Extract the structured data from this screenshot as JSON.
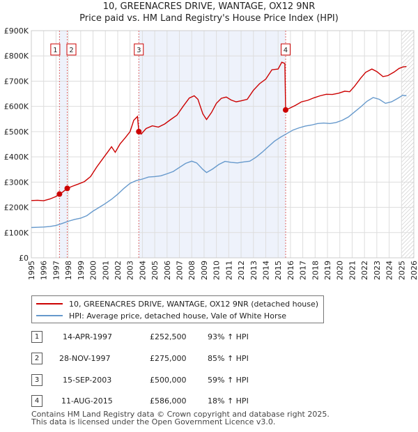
{
  "title": "10, GREENACRES DRIVE, WANTAGE, OX12 9NR",
  "subtitle": "Price paid vs. HM Land Registry's House Price Index (HPI)",
  "legend": {
    "property": "10, GREENACRES DRIVE, WANTAGE, OX12 9NR (detached house)",
    "hpi": "HPI: Average price, detached house, Vale of White Horse"
  },
  "colors": {
    "property": "#cc0000",
    "hpi": "#6699cc",
    "shade": "#eef2fb"
  },
  "sales": [
    {
      "num": "1",
      "date": "14-APR-1997",
      "price": "£252,500",
      "change": "93% ↑ HPI"
    },
    {
      "num": "2",
      "date": "28-NOV-1997",
      "price": "£275,000",
      "change": "85% ↑ HPI"
    },
    {
      "num": "3",
      "date": "15-SEP-2003",
      "price": "£500,000",
      "change": "59% ↑ HPI"
    },
    {
      "num": "4",
      "date": "11-AUG-2015",
      "price": "£586,000",
      "change": "18% ↑ HPI"
    }
  ],
  "footer": {
    "line1": "Contains HM Land Registry data © Crown copyright and database right 2025.",
    "line2": "This data is licensed under the Open Government Licence v3.0."
  },
  "chart_data": {
    "type": "line",
    "xlim": [
      1995,
      2026
    ],
    "ylim": [
      0,
      900000
    ],
    "yticks": [
      0,
      100000,
      200000,
      300000,
      400000,
      500000,
      600000,
      700000,
      800000,
      900000
    ],
    "ytick_labels": [
      "£0",
      "£100K",
      "£200K",
      "£300K",
      "£400K",
      "£500K",
      "£600K",
      "£700K",
      "£800K",
      "£900K"
    ],
    "xticks": [
      "1995",
      "1996",
      "1997",
      "1998",
      "1999",
      "2000",
      "2001",
      "2002",
      "2003",
      "2004",
      "2005",
      "2006",
      "2007",
      "2008",
      "2009",
      "2010",
      "2011",
      "2012",
      "2013",
      "2014",
      "2015",
      "2016",
      "2017",
      "2018",
      "2019",
      "2020",
      "2021",
      "2022",
      "2023",
      "2024",
      "2025",
      "2026"
    ],
    "sale_markers": [
      {
        "label": "1",
        "year": 1997.28,
        "value": 252500
      },
      {
        "label": "2",
        "year": 1997.91,
        "value": 275000
      },
      {
        "label": "3",
        "year": 2003.71,
        "value": 500000
      },
      {
        "label": "4",
        "year": 2015.61,
        "value": 586000
      }
    ],
    "forecast_start": 2025.0,
    "series": [
      {
        "name": "10, GREENACRES DRIVE, WANTAGE, OX12 9NR (detached house)",
        "points": [
          [
            1995.0,
            227000
          ],
          [
            1995.5,
            228000
          ],
          [
            1996.0,
            226000
          ],
          [
            1996.5,
            233000
          ],
          [
            1997.0,
            243000
          ],
          [
            1997.28,
            252500
          ],
          [
            1997.5,
            259000
          ],
          [
            1997.91,
            275000
          ],
          [
            1998.3,
            283000
          ],
          [
            1998.8,
            292000
          ],
          [
            1999.3,
            302000
          ],
          [
            1999.8,
            322000
          ],
          [
            2000.3,
            360000
          ],
          [
            2000.8,
            393000
          ],
          [
            2001.2,
            420000
          ],
          [
            2001.5,
            440000
          ],
          [
            2001.8,
            418000
          ],
          [
            2002.2,
            452000
          ],
          [
            2002.6,
            475000
          ],
          [
            2003.0,
            500000
          ],
          [
            2003.3,
            545000
          ],
          [
            2003.6,
            560000
          ],
          [
            2003.71,
            500000
          ],
          [
            2003.9,
            490000
          ],
          [
            2004.3,
            512000
          ],
          [
            2004.8,
            523000
          ],
          [
            2005.3,
            518000
          ],
          [
            2005.8,
            530000
          ],
          [
            2006.3,
            548000
          ],
          [
            2006.8,
            565000
          ],
          [
            2007.3,
            600000
          ],
          [
            2007.8,
            633000
          ],
          [
            2008.2,
            642000
          ],
          [
            2008.5,
            628000
          ],
          [
            2008.9,
            570000
          ],
          [
            2009.2,
            548000
          ],
          [
            2009.6,
            576000
          ],
          [
            2010.0,
            612000
          ],
          [
            2010.4,
            632000
          ],
          [
            2010.8,
            637000
          ],
          [
            2011.2,
            625000
          ],
          [
            2011.6,
            618000
          ],
          [
            2012.0,
            622000
          ],
          [
            2012.5,
            628000
          ],
          [
            2013.0,
            664000
          ],
          [
            2013.5,
            690000
          ],
          [
            2014.0,
            708000
          ],
          [
            2014.5,
            745000
          ],
          [
            2015.0,
            748000
          ],
          [
            2015.3,
            775000
          ],
          [
            2015.55,
            770000
          ],
          [
            2015.61,
            586000
          ],
          [
            2015.9,
            592000
          ],
          [
            2016.4,
            604000
          ],
          [
            2016.9,
            618000
          ],
          [
            2017.4,
            624000
          ],
          [
            2017.9,
            634000
          ],
          [
            2018.4,
            642000
          ],
          [
            2018.9,
            648000
          ],
          [
            2019.4,
            647000
          ],
          [
            2019.9,
            652000
          ],
          [
            2020.4,
            660000
          ],
          [
            2020.8,
            658000
          ],
          [
            2021.2,
            680000
          ],
          [
            2021.7,
            712000
          ],
          [
            2022.1,
            735000
          ],
          [
            2022.6,
            748000
          ],
          [
            2023.0,
            738000
          ],
          [
            2023.5,
            718000
          ],
          [
            2023.9,
            722000
          ],
          [
            2024.4,
            736000
          ],
          [
            2024.8,
            750000
          ],
          [
            2025.1,
            756000
          ],
          [
            2025.4,
            758000
          ]
        ]
      },
      {
        "name": "HPI: Average price, detached house, Vale of White Horse",
        "points": [
          [
            1995.0,
            120000
          ],
          [
            1995.5,
            121000
          ],
          [
            1996.0,
            122000
          ],
          [
            1996.5,
            124000
          ],
          [
            1997.0,
            128000
          ],
          [
            1997.5,
            136000
          ],
          [
            1998.0,
            145000
          ],
          [
            1998.5,
            152000
          ],
          [
            1999.0,
            157000
          ],
          [
            1999.5,
            167000
          ],
          [
            2000.0,
            185000
          ],
          [
            2000.5,
            200000
          ],
          [
            2001.0,
            215000
          ],
          [
            2001.5,
            232000
          ],
          [
            2002.0,
            252000
          ],
          [
            2002.5,
            275000
          ],
          [
            2003.0,
            295000
          ],
          [
            2003.5,
            306000
          ],
          [
            2004.0,
            312000
          ],
          [
            2004.5,
            320000
          ],
          [
            2005.0,
            322000
          ],
          [
            2005.5,
            325000
          ],
          [
            2006.0,
            333000
          ],
          [
            2006.5,
            342000
          ],
          [
            2007.0,
            358000
          ],
          [
            2007.5,
            374000
          ],
          [
            2008.0,
            383000
          ],
          [
            2008.4,
            376000
          ],
          [
            2008.9,
            350000
          ],
          [
            2009.2,
            338000
          ],
          [
            2009.7,
            352000
          ],
          [
            2010.2,
            370000
          ],
          [
            2010.7,
            382000
          ],
          [
            2011.2,
            378000
          ],
          [
            2011.7,
            376000
          ],
          [
            2012.2,
            380000
          ],
          [
            2012.7,
            383000
          ],
          [
            2013.2,
            398000
          ],
          [
            2013.7,
            418000
          ],
          [
            2014.2,
            440000
          ],
          [
            2014.7,
            462000
          ],
          [
            2015.2,
            478000
          ],
          [
            2015.7,
            492000
          ],
          [
            2016.2,
            506000
          ],
          [
            2016.7,
            515000
          ],
          [
            2017.2,
            522000
          ],
          [
            2017.7,
            526000
          ],
          [
            2018.2,
            532000
          ],
          [
            2018.7,
            534000
          ],
          [
            2019.2,
            532000
          ],
          [
            2019.7,
            536000
          ],
          [
            2020.2,
            545000
          ],
          [
            2020.7,
            558000
          ],
          [
            2021.2,
            578000
          ],
          [
            2021.7,
            598000
          ],
          [
            2022.2,
            620000
          ],
          [
            2022.7,
            635000
          ],
          [
            2023.2,
            628000
          ],
          [
            2023.7,
            612000
          ],
          [
            2024.2,
            618000
          ],
          [
            2024.7,
            632000
          ],
          [
            2025.1,
            644000
          ],
          [
            2025.4,
            642000
          ]
        ]
      }
    ]
  }
}
